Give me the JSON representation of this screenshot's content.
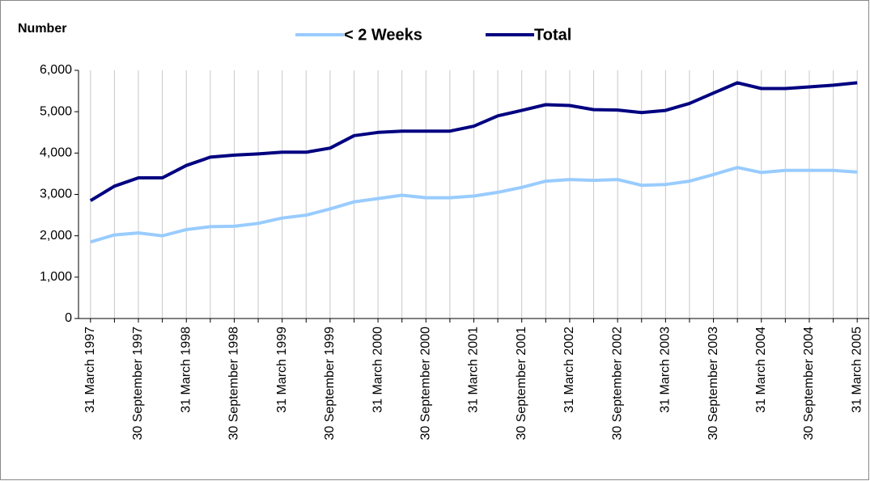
{
  "chart_data": {
    "type": "line",
    "y_label": "Number",
    "categories": [
      "31 March 1997",
      null,
      "30 September 1997",
      null,
      "31 March 1998",
      null,
      "30 September 1998",
      null,
      "31 March 1999",
      null,
      "30 September 1999",
      null,
      "31 March 2000",
      null,
      "30 September 2000",
      null,
      "31 March 2001",
      null,
      "30 September 2001",
      null,
      "31 March 2002",
      null,
      "30 September 2002",
      null,
      "31 March 2003",
      null,
      "30 September 2003",
      null,
      "31 March 2004",
      null,
      "30 September 2004",
      null,
      "31 March 2005"
    ],
    "series": [
      {
        "name": "< 2 Weeks",
        "color": "#99ccff",
        "values": [
          1850,
          2020,
          2070,
          2000,
          2150,
          2220,
          2230,
          2300,
          2430,
          2500,
          2650,
          2820,
          2900,
          2980,
          2920,
          2920,
          2960,
          3050,
          3170,
          3320,
          3360,
          3340,
          3360,
          3220,
          3240,
          3320,
          3480,
          3650,
          3530,
          3580,
          3580,
          3580,
          3540
        ]
      },
      {
        "name": "Total",
        "color": "#000080",
        "values": [
          2850,
          3200,
          3400,
          3400,
          3700,
          3900,
          3950,
          3980,
          4020,
          4020,
          4120,
          4420,
          4500,
          4530,
          4530,
          4530,
          4650,
          4900,
          5030,
          5170,
          5150,
          5050,
          5040,
          4980,
          5030,
          5200,
          5450,
          5700,
          5560,
          5560,
          5600,
          5640,
          5700
        ]
      }
    ],
    "ylim": [
      0,
      6000
    ],
    "yticks": [
      0,
      {
        "value": 1000,
        "label": "1,000"
      },
      {
        "value": 2000,
        "label": "2,000"
      },
      {
        "value": 3000,
        "label": "3,000"
      },
      {
        "value": 4000,
        "label": "4,000"
      },
      {
        "value": 5000,
        "label": "5,000"
      },
      {
        "value": 6000,
        "label": "6,000"
      }
    ],
    "grid": "x",
    "legend": "top"
  }
}
